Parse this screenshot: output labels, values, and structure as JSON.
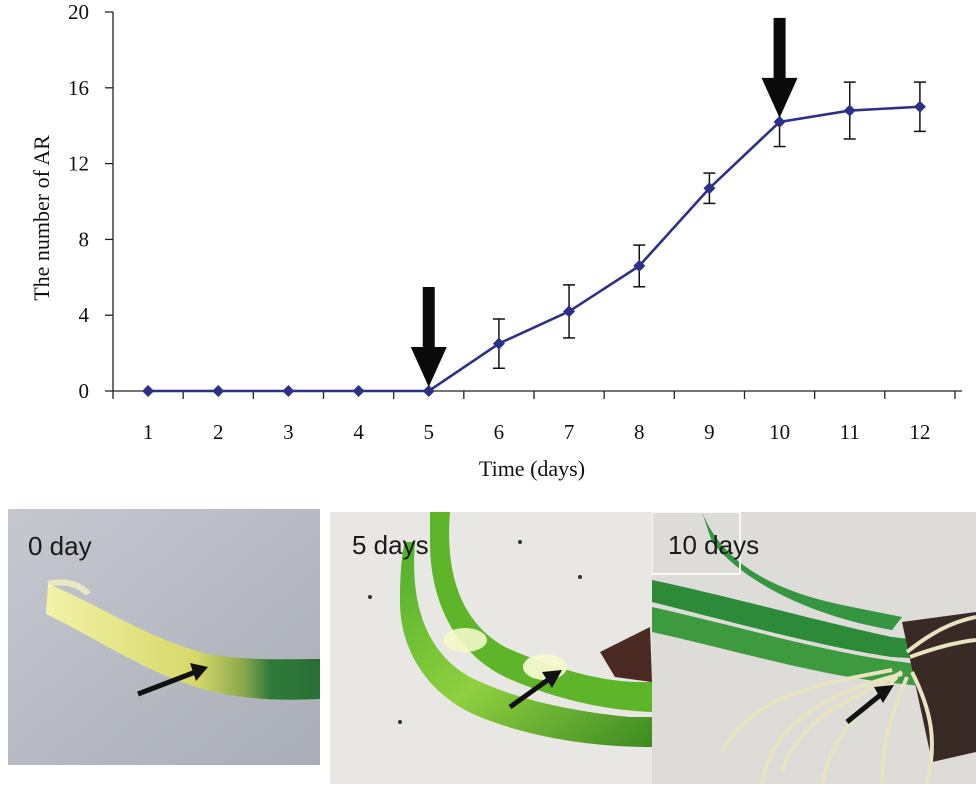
{
  "chart_data": {
    "type": "line",
    "xlabel": "Time (days)",
    "ylabel": "The number of AR",
    "x": [
      1,
      2,
      3,
      4,
      5,
      6,
      7,
      8,
      9,
      10,
      11,
      12
    ],
    "y_ticks": [
      0,
      4,
      8,
      12,
      16,
      20
    ],
    "ylim": [
      0,
      20
    ],
    "xlim": [
      0.5,
      12.6
    ],
    "series": [
      {
        "values": [
          0,
          0,
          0,
          0,
          0,
          2.5,
          4.2,
          6.6,
          10.7,
          14.2,
          14.8,
          15.0
        ],
        "errors": [
          0,
          0,
          0,
          0,
          0,
          1.3,
          1.4,
          1.1,
          0.8,
          1.3,
          1.5,
          1.3
        ],
        "color": "#2e2f86"
      }
    ],
    "arrows_at_x": [
      5,
      10
    ],
    "grid": false
  },
  "photos": [
    {
      "label": "0 day"
    },
    {
      "label": "5 days"
    },
    {
      "label": "10 days"
    }
  ]
}
